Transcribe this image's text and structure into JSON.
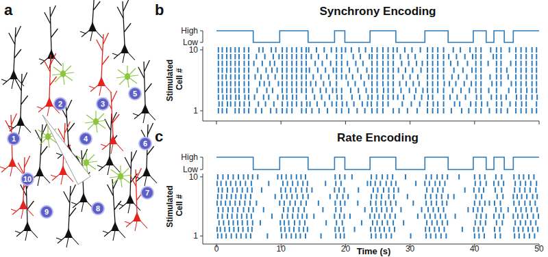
{
  "panel_labels": [
    "a",
    "b",
    "c"
  ],
  "diagram": {
    "neuron_labels": [
      1,
      2,
      3,
      4,
      5,
      6,
      7,
      8,
      9,
      10
    ]
  },
  "chart_data": [
    {
      "type": "raster",
      "title": "Synchrony Encoding",
      "ylabel": "Stimulated Cell #",
      "xlim": [
        0,
        50
      ],
      "xticks": [
        0,
        10,
        20,
        30,
        40,
        50
      ],
      "ylim": [
        0.5,
        10.5
      ],
      "yticks": [
        1,
        10
      ],
      "tick_labels": "y",
      "color": "#2b7bbd",
      "stimulus": {
        "x": [
          0,
          5.7,
          5.7,
          9.8,
          9.8,
          14.2,
          14.2,
          18.3,
          18.3,
          19.9,
          19.9,
          23.8,
          23.8,
          27.8,
          27.8,
          32.3,
          32.3,
          35.9,
          35.9,
          39.8,
          39.8,
          41.8,
          41.8,
          43.0,
          43.0,
          44.6,
          44.6,
          46.0,
          46.0,
          50
        ],
        "values": [
          1,
          1,
          0,
          0,
          1,
          1,
          0,
          0,
          1,
          1,
          0,
          0,
          1,
          1,
          0,
          0,
          1,
          1,
          0,
          0,
          1,
          1,
          0,
          0,
          1,
          1,
          0,
          0,
          1,
          1
        ],
        "ylim": [
          0,
          1
        ],
        "yticks": [
          {
            "value": 0,
            "label": "Low"
          },
          {
            "value": 1,
            "label": "High"
          }
        ]
      },
      "spikes": [
        [
          0.3,
          0.9,
          1.6,
          2.9,
          3.5,
          4.3,
          5.0,
          6.1,
          7.0,
          8.4,
          9.3,
          10.2,
          10.9,
          11.7,
          13.2,
          13.9,
          14.8,
          15.9,
          17.2,
          18.6,
          19.4,
          20.5,
          21.8,
          23.0,
          24.1,
          24.9,
          25.8,
          27.4,
          28.3,
          29.6,
          31.1,
          32.7,
          33.5,
          34.3,
          35.2,
          36.4,
          38.0,
          39.1,
          40.2,
          41.0,
          42.3,
          43.4,
          44.1,
          45.1,
          46.4,
          47.2,
          48.0,
          48.9,
          49.6
        ],
        [
          0.4,
          0.9,
          1.7,
          2.2,
          2.9,
          3.6,
          4.3,
          5.1,
          6.5,
          7.6,
          8.9,
          10.2,
          11.0,
          11.7,
          12.4,
          13.2,
          14.0,
          14.5,
          15.6,
          16.8,
          17.9,
          18.6,
          19.5,
          20.2,
          21.3,
          22.6,
          23.4,
          24.0,
          24.9,
          25.8,
          26.6,
          28.8,
          30.2,
          31.5,
          32.7,
          33.6,
          34.3,
          35.2,
          36.9,
          37.7,
          39.4,
          40.2,
          41.1,
          42.0,
          43.4,
          44.2,
          45.5,
          46.4,
          47.3,
          48.0,
          49.6
        ],
        [
          0.3,
          1.0,
          1.6,
          2.2,
          3.0,
          3.5,
          4.4,
          5.0,
          5.9,
          7.3,
          8.1,
          9.5,
          10.3,
          10.9,
          11.8,
          12.4,
          13.9,
          15.2,
          16.3,
          17.5,
          18.7,
          19.4,
          21.0,
          22.2,
          23.5,
          24.1,
          25.0,
          25.8,
          26.6,
          27.4,
          28.1,
          29.0,
          30.7,
          31.8,
          32.8,
          33.5,
          35.2,
          36.2,
          37.3,
          38.6,
          40.3,
          41.0,
          42.6,
          43.4,
          44.1,
          44.9,
          46.5,
          47.2,
          48.0,
          48.9,
          49.7
        ],
        [
          0.3,
          0.9,
          1.6,
          2.2,
          2.9,
          3.5,
          4.3,
          5.0,
          6.3,
          7.8,
          8.7,
          10.2,
          10.9,
          11.7,
          12.4,
          13.2,
          13.9,
          14.9,
          16.1,
          17.0,
          18.0,
          18.6,
          19.4,
          20.8,
          22.0,
          23.2,
          24.1,
          24.9,
          25.9,
          26.6,
          27.4,
          28.6,
          29.9,
          30.9,
          32.0,
          32.7,
          33.5,
          34.3,
          35.2,
          36.6,
          37.9,
          39.2,
          40.2,
          41.0,
          42.2,
          43.4,
          45.3,
          46.4,
          47.2,
          48.1,
          48.9,
          49.6
        ],
        [
          0.3,
          0.9,
          1.6,
          2.2,
          2.9,
          3.5,
          4.3,
          5.0,
          6.7,
          7.4,
          8.2,
          9.6,
          10.2,
          10.9,
          11.7,
          12.4,
          13.2,
          13.9,
          14.6,
          15.4,
          16.6,
          17.6,
          18.6,
          20.4,
          21.5,
          22.9,
          24.1,
          24.9,
          25.8,
          26.6,
          27.4,
          28.4,
          29.4,
          30.5,
          31.4,
          32.7,
          33.5,
          34.3,
          35.3,
          36.1,
          37.1,
          38.4,
          39.5,
          40.2,
          41.0,
          42.7,
          43.4,
          44.1,
          45.7,
          46.4,
          47.2,
          48.0,
          48.9,
          49.6
        ],
        [
          0.3,
          0.9,
          1.5,
          2.2,
          2.9,
          3.5,
          4.3,
          5.0,
          6.0,
          6.9,
          8.0,
          9.1,
          10.2,
          10.9,
          11.7,
          12.4,
          13.2,
          13.9,
          15.0,
          16.2,
          17.4,
          18.6,
          19.4,
          20.1,
          21.1,
          22.4,
          23.6,
          24.1,
          24.9,
          25.8,
          26.6,
          27.4,
          28.9,
          30.0,
          31.2,
          32.7,
          33.5,
          34.3,
          35.2,
          36.5,
          37.5,
          38.8,
          40.2,
          41.0,
          42.4,
          43.4,
          44.1,
          45.2,
          46.4,
          47.2,
          48.0,
          48.9,
          49.6
        ],
        [
          0.3,
          0.9,
          1.6,
          2.2,
          2.9,
          3.5,
          4.3,
          5.0,
          6.4,
          7.7,
          8.6,
          9.4,
          10.2,
          10.9,
          11.7,
          12.4,
          13.2,
          13.9,
          14.4,
          15.7,
          16.9,
          18.1,
          18.6,
          19.4,
          20.6,
          21.9,
          23.3,
          24.1,
          24.9,
          25.8,
          26.6,
          27.4,
          28.2,
          29.3,
          30.4,
          31.7,
          32.7,
          33.5,
          34.3,
          35.2,
          36.8,
          38.2,
          39.6,
          40.2,
          41.0,
          43.4,
          44.1,
          45.0,
          46.4,
          47.2,
          48.0,
          48.9,
          49.6
        ],
        [
          0.3,
          0.9,
          1.6,
          2.2,
          2.9,
          3.5,
          4.3,
          5.0,
          5.8,
          7.1,
          8.3,
          9.0,
          10.2,
          10.9,
          11.7,
          12.4,
          13.2,
          13.9,
          15.3,
          16.4,
          17.7,
          18.6,
          19.4,
          20.3,
          21.6,
          22.7,
          24.1,
          24.9,
          25.8,
          26.6,
          27.4,
          28.7,
          29.8,
          31.0,
          31.9,
          32.7,
          33.5,
          34.3,
          35.2,
          36.3,
          37.4,
          38.9,
          40.2,
          41.0,
          42.1,
          43.4,
          44.1,
          45.6,
          46.4,
          47.2,
          48.0,
          48.9,
          49.6
        ],
        [
          0.3,
          0.9,
          1.6,
          2.2,
          2.9,
          3.5,
          4.3,
          5.0,
          6.2,
          7.5,
          8.8,
          9.7,
          10.2,
          10.9,
          11.7,
          12.4,
          13.2,
          13.9,
          14.7,
          15.8,
          17.1,
          18.6,
          19.4,
          21.2,
          22.3,
          23.7,
          24.1,
          24.9,
          25.8,
          26.6,
          27.4,
          28.5,
          29.7,
          30.8,
          32.7,
          33.5,
          34.3,
          35.2,
          36.0,
          37.2,
          38.5,
          39.7,
          40.2,
          41.0,
          42.9,
          43.4,
          44.1,
          46.4,
          47.2,
          48.0,
          48.9,
          49.6
        ],
        [
          0.3,
          0.9,
          1.6,
          2.2,
          2.9,
          3.5,
          4.3,
          5.0,
          6.6,
          7.2,
          8.5,
          9.2,
          10.2,
          10.9,
          11.7,
          12.4,
          13.2,
          13.9,
          14.3,
          15.5,
          16.7,
          17.8,
          18.6,
          19.4,
          20.0,
          20.9,
          22.1,
          23.1,
          24.1,
          24.9,
          25.8,
          26.6,
          27.4,
          28.0,
          29.2,
          30.3,
          31.6,
          32.7,
          33.5,
          34.3,
          35.2,
          36.7,
          37.8,
          39.3,
          40.2,
          41.0,
          42.5,
          43.4,
          44.1,
          45.4,
          46.4,
          47.2,
          48.0,
          48.9,
          49.6
        ]
      ]
    },
    {
      "type": "raster",
      "title": "Rate Encoding",
      "xlabel": "Time (s)",
      "ylabel": "Stimulated Cell #",
      "xlim": [
        0,
        50
      ],
      "xticks": [
        0,
        10,
        20,
        30,
        40,
        50
      ],
      "ylim": [
        0.5,
        10.5
      ],
      "yticks": [
        1,
        10
      ],
      "color": "#2b7bbd",
      "stimulus": {
        "x": [
          0,
          5.7,
          5.7,
          9.8,
          9.8,
          14.2,
          14.2,
          18.3,
          18.3,
          19.9,
          19.9,
          23.8,
          23.8,
          27.8,
          27.8,
          32.3,
          32.3,
          35.9,
          35.9,
          39.8,
          39.8,
          41.8,
          41.8,
          43.0,
          43.0,
          44.6,
          44.6,
          46.0,
          46.0,
          50
        ],
        "values": [
          1,
          1,
          0,
          0,
          1,
          1,
          0,
          0,
          1,
          1,
          0,
          0,
          1,
          1,
          0,
          0,
          1,
          1,
          0,
          0,
          1,
          1,
          0,
          0,
          1,
          1,
          0,
          0,
          1,
          1
        ],
        "ylim": [
          0,
          1
        ],
        "yticks": [
          {
            "value": 0,
            "label": "Low"
          },
          {
            "value": 1,
            "label": "High"
          }
        ]
      },
      "spikes": [
        [
          0.2,
          0.8,
          1.5,
          2.3,
          3.1,
          3.8,
          4.6,
          5.3,
          7.9,
          10.1,
          10.8,
          11.6,
          12.3,
          13.0,
          13.8,
          16.2,
          18.5,
          19.2,
          19.8,
          24.0,
          24.7,
          25.5,
          26.3,
          27.1,
          30.1,
          32.5,
          33.2,
          34.0,
          34.8,
          35.6,
          40.0,
          40.7,
          41.5,
          43.2,
          44.0,
          46.2,
          46.9,
          47.7,
          48.5,
          49.3
        ],
        [
          0.1,
          0.6,
          1.3,
          2.0,
          2.7,
          3.4,
          4.1,
          4.9,
          5.5,
          10.0,
          10.6,
          11.3,
          12.0,
          12.8,
          13.5,
          14.1,
          18.4,
          19.0,
          19.7,
          21.4,
          23.9,
          24.6,
          25.3,
          26.0,
          26.8,
          27.6,
          32.4,
          33.0,
          33.8,
          34.5,
          35.3,
          38.1,
          39.9,
          40.6,
          41.3,
          43.1,
          43.9,
          46.1,
          46.8,
          47.5,
          48.3,
          49.0,
          49.8
        ],
        [
          0.4,
          1.1,
          1.9,
          2.6,
          3.3,
          4.0,
          4.8,
          5.6,
          6.8,
          9.9,
          10.5,
          11.2,
          12.1,
          12.9,
          13.7,
          17.0,
          18.6,
          19.5,
          22.5,
          24.2,
          24.9,
          25.7,
          26.5,
          27.4,
          29.0,
          32.6,
          33.4,
          34.2,
          35.0,
          35.8,
          40.1,
          40.9,
          41.7,
          43.4,
          44.3,
          46.3,
          47.1,
          47.9,
          48.7,
          49.5
        ],
        [
          0.2,
          0.9,
          1.7,
          2.4,
          3.2,
          3.9,
          4.7,
          5.4,
          8.6,
          10.2,
          11.0,
          11.8,
          12.6,
          13.3,
          14.0,
          15.1,
          18.3,
          19.1,
          19.8,
          20.7,
          23.8,
          24.5,
          25.2,
          26.1,
          26.9,
          27.7,
          31.2,
          32.3,
          33.1,
          33.9,
          34.7,
          35.5,
          37.0,
          40.3,
          41.0,
          41.8,
          43.0,
          43.8,
          44.5,
          46.0,
          46.7,
          47.4,
          48.2,
          49.1,
          49.9
        ],
        [
          0.3,
          1.0,
          1.8,
          2.5,
          3.3,
          4.2,
          5.0,
          5.7,
          7.3,
          10.4,
          11.1,
          11.9,
          12.7,
          13.6,
          16.5,
          18.5,
          19.3,
          23.0,
          24.1,
          24.8,
          25.6,
          26.4,
          27.2,
          28.6,
          31.8,
          32.8,
          33.6,
          34.4,
          35.2,
          39.0,
          39.8,
          40.5,
          41.2,
          43.3,
          44.1,
          45.2,
          46.4,
          47.2,
          48.0,
          48.8,
          49.7
        ],
        [
          0.1,
          0.7,
          1.4,
          2.1,
          2.9,
          3.6,
          4.4,
          5.2,
          6.2,
          9.8,
          10.5,
          11.4,
          12.2,
          13.1,
          13.9,
          15.8,
          18.4,
          19.2,
          19.9,
          21.9,
          23.9,
          24.7,
          25.5,
          26.2,
          27.0,
          27.8,
          30.5,
          32.5,
          33.3,
          34.1,
          35.0,
          35.7,
          40.0,
          40.8,
          41.6,
          42.3,
          43.1,
          44.0,
          46.1,
          46.9,
          47.8,
          48.6,
          49.4
        ],
        [
          0.2,
          0.8,
          1.6,
          2.3,
          3.0,
          3.8,
          4.5,
          5.3,
          9.1,
          10.1,
          10.9,
          11.7,
          12.5,
          13.4,
          14.2,
          17.6,
          18.7,
          19.6,
          20.4,
          24.0,
          24.8,
          25.6,
          26.7,
          27.5,
          29.6,
          32.4,
          33.2,
          34.1,
          34.9,
          35.9,
          36.8,
          40.2,
          41.1,
          43.5,
          44.4,
          46.0,
          46.6,
          47.3,
          48.1,
          49.0,
          49.7
        ],
        [
          0.3,
          0.9,
          1.7,
          2.5,
          3.2,
          4.0,
          4.8,
          5.5,
          7.0,
          10.0,
          10.7,
          11.5,
          12.3,
          13.2,
          14.0,
          14.8,
          18.3,
          19.0,
          19.8,
          22.0,
          24.3,
          25.0,
          25.9,
          26.7,
          27.5,
          28.2,
          32.6,
          33.5,
          34.3,
          35.1,
          38.5,
          39.9,
          40.7,
          41.4,
          43.2,
          44.2,
          46.2,
          47.0,
          47.8,
          48.6,
          49.5
        ],
        [
          0.1,
          0.7,
          1.5,
          2.2,
          3.0,
          3.7,
          4.5,
          5.4,
          8.1,
          10.3,
          11.0,
          11.8,
          12.6,
          13.4,
          14.1,
          16.9,
          18.5,
          19.3,
          23.4,
          23.9,
          24.6,
          25.4,
          26.3,
          27.1,
          27.8,
          30.9,
          32.3,
          33.0,
          33.9,
          34.6,
          35.4,
          40.1,
          40.9,
          41.8,
          43.0,
          43.7,
          44.5,
          46.3,
          47.1,
          47.9,
          48.7,
          49.6
        ],
        [
          0.2,
          1.0,
          1.8,
          2.6,
          3.4,
          4.2,
          4.9,
          5.6,
          6.4,
          9.5,
          10.1,
          10.8,
          11.6,
          12.4,
          13.1,
          13.8,
          18.4,
          19.1,
          19.9,
          21.0,
          24.0,
          24.8,
          25.7,
          26.5,
          27.3,
          29.3,
          32.5,
          33.3,
          34.2,
          35.0,
          35.8,
          37.6,
          40.0,
          40.8,
          41.6,
          43.3,
          44.2,
          46.1,
          46.9,
          47.6,
          48.4,
          49.2
        ]
      ]
    }
  ]
}
